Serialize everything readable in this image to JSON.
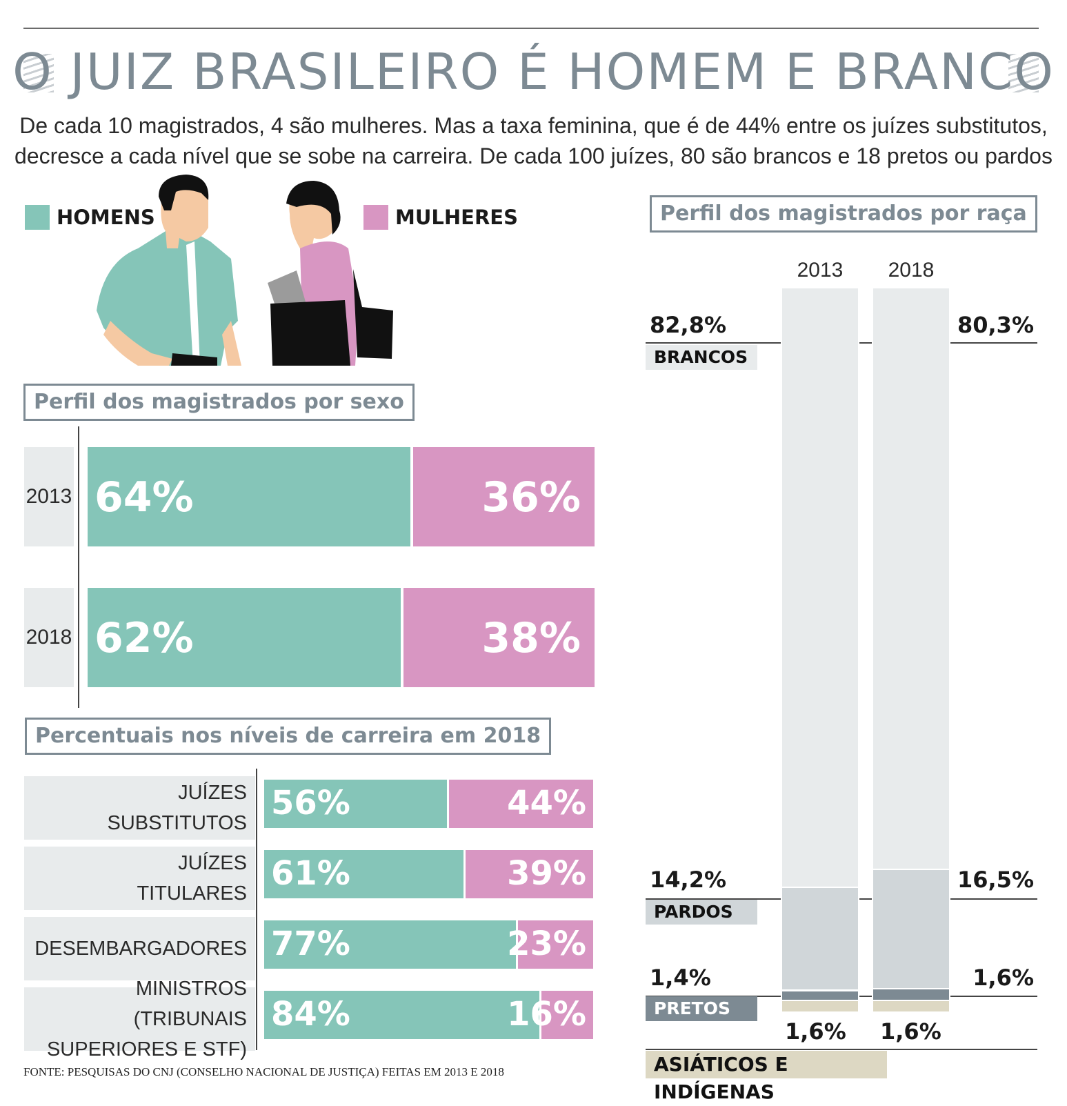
{
  "title": "O JUIZ BRASILEIRO É HOMEM E BRANCO",
  "subtitle_line1": "De cada 10 magistrados, 4 são mulheres. Mas a taxa feminina, que é de 44% entre os juízes substitutos,",
  "subtitle_line2": "decresce a cada nível que se sobe na carreira. De cada 100 juízes, 80 são brancos e 18 pretos ou pardos",
  "legend": {
    "men": "HOMENS",
    "women": "MULHERES"
  },
  "colors": {
    "men": "#85c5b8",
    "women": "#d896c2",
    "brancos": "#e8ebec",
    "pardos": "#d0d6d9",
    "pretos": "#7d8a93",
    "asiaticos": "#ddd8c3"
  },
  "source": "FONTE: PESQUISAS DO CNJ (CONSELHO NACIONAL DE JUSTIÇA) FEITAS EM 2013 E 2018",
  "chart_data": [
    {
      "type": "bar",
      "title": "Perfil dos magistrados por sexo",
      "stacked": true,
      "orientation": "horizontal",
      "categories": [
        "2013",
        "2018"
      ],
      "series": [
        {
          "name": "HOMENS",
          "values": [
            64,
            62
          ],
          "labels": [
            "64%",
            "62%"
          ]
        },
        {
          "name": "MULHERES",
          "values": [
            36,
            38
          ],
          "labels": [
            "36%",
            "38%"
          ]
        }
      ]
    },
    {
      "type": "bar",
      "title": "Percentuais nos níveis de carreira em 2018",
      "stacked": true,
      "orientation": "horizontal",
      "categories": [
        {
          "line1": "JUÍZES",
          "line2": "SUBSTITUTOS"
        },
        {
          "line1": "JUÍZES",
          "line2": "TITULARES"
        },
        {
          "line1": "DESEMBARGADORES",
          "line2": ""
        },
        {
          "line1": "MINISTROS (TRIBUNAIS",
          "line2": "SUPERIORES E STF)"
        }
      ],
      "series": [
        {
          "name": "HOMENS",
          "values": [
            56,
            61,
            77,
            84
          ],
          "labels": [
            "56%",
            "61%",
            "77%",
            "84%"
          ]
        },
        {
          "name": "MULHERES",
          "values": [
            44,
            39,
            23,
            16
          ],
          "labels": [
            "44%",
            "39%",
            "23%",
            "16%"
          ]
        }
      ]
    },
    {
      "type": "bar",
      "title": "Perfil dos magistrados por raça",
      "stacked": true,
      "orientation": "vertical",
      "categories": [
        "2013",
        "2018"
      ],
      "series": [
        {
          "name": "BRANCOS",
          "values": [
            82.8,
            80.3
          ],
          "labels": [
            "82,8%",
            "80,3%"
          ]
        },
        {
          "name": "PARDOS",
          "values": [
            14.2,
            16.5
          ],
          "labels": [
            "14,2%",
            "16,5%"
          ]
        },
        {
          "name": "PRETOS",
          "values": [
            1.4,
            1.6
          ],
          "labels": [
            "1,4%",
            "1,6%"
          ]
        },
        {
          "name": "ASIÁTICOS E INDÍGENAS",
          "values": [
            1.6,
            1.6
          ],
          "labels": [
            "1,6%",
            "1,6%"
          ]
        }
      ]
    }
  ]
}
